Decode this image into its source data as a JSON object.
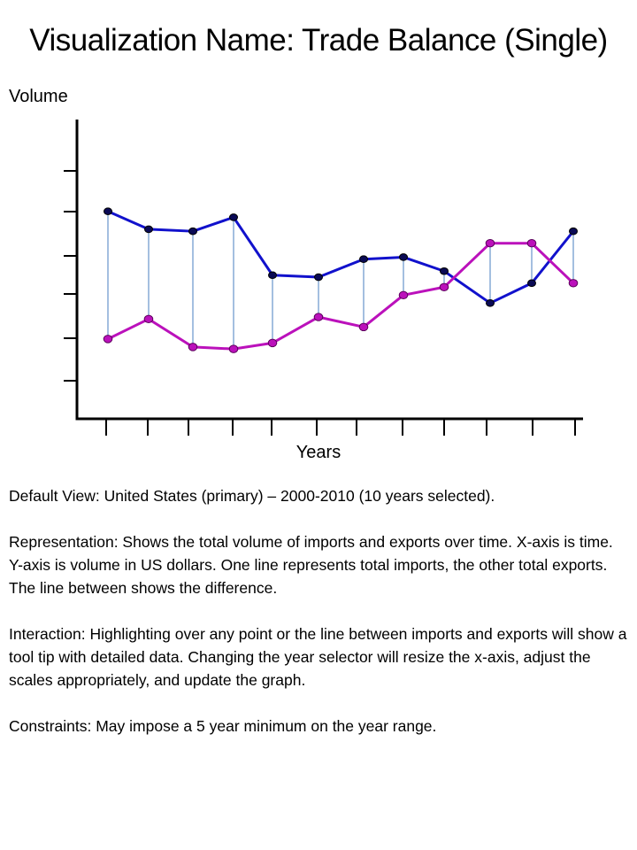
{
  "title": "Visualization Name: Trade Balance (Single)",
  "chart_data": {
    "type": "line",
    "title": "",
    "xlabel": "Years",
    "ylabel": "Volume",
    "x": [
      1,
      2,
      3,
      4,
      5,
      6,
      7,
      8,
      9,
      10,
      11,
      12
    ],
    "ylim": [
      0,
      7.5
    ],
    "grid": false,
    "series": [
      {
        "name": "",
        "color": "#1111cc",
        "values": [
          5.2,
          4.75,
          4.7,
          5.05,
          3.6,
          3.55,
          4.0,
          4.05,
          3.7,
          2.9,
          3.4,
          4.7
        ]
      },
      {
        "name": "",
        "color": "#bb11bb",
        "values": [
          2.0,
          2.5,
          1.8,
          1.75,
          1.9,
          2.55,
          2.3,
          3.1,
          3.3,
          4.4,
          4.4,
          3.4
        ]
      }
    ],
    "difference_line_color": "#4a7fc0"
  },
  "description": {
    "default_view": "Default View: United States (primary) – 2000-2010 (10 years selected).",
    "representation": "Representation: Shows the total volume of imports and exports over time. X-axis is time. Y-axis is volume in US dollars. One line represents total imports, the other total exports. The line between shows the difference.",
    "interaction": "Interaction: Highlighting over any point or the line between imports and exports will show a tool tip with detailed data. Changing the year selector will resize the x-axis, adjust the scales appropriately, and update the graph.",
    "constraints": "Constraints: May impose a 5 year minimum on the year range."
  }
}
